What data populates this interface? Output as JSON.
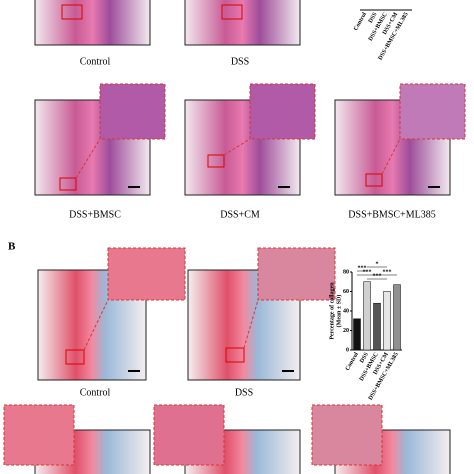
{
  "figure": {
    "panel_b_letter": "B",
    "row1_labels": [
      "Control",
      "DSS"
    ],
    "row2_labels": [
      "DSS+BMSC",
      "DSS+CM",
      "DSS+BMSC+ML385"
    ],
    "row3_labels": [
      "Control",
      "DSS"
    ]
  },
  "chart_data": [
    {
      "type": "bar",
      "categories": [
        "Control",
        "DSS",
        "DSS+BMSC",
        "DSS+CM",
        "DSS+BMSC+ML385"
      ]
    },
    {
      "type": "bar",
      "ylabel": [
        "Percentage of collagen",
        "(Mean ± SD)"
      ],
      "categories": [
        "Control",
        "DSS",
        "DSS+BMSC",
        "DSS+CM",
        "DSS+BMSC+ML385"
      ],
      "values": [
        32,
        70,
        48,
        60,
        67
      ],
      "colors": [
        "#111111",
        "#d0d0d0",
        "#555555",
        "#e6e6e6",
        "#909090"
      ],
      "ylim": [
        0,
        80
      ],
      "yticks": [
        0,
        20,
        40,
        60,
        80
      ],
      "annotations": [
        "***",
        "***",
        "***",
        "***",
        "*"
      ]
    }
  ]
}
